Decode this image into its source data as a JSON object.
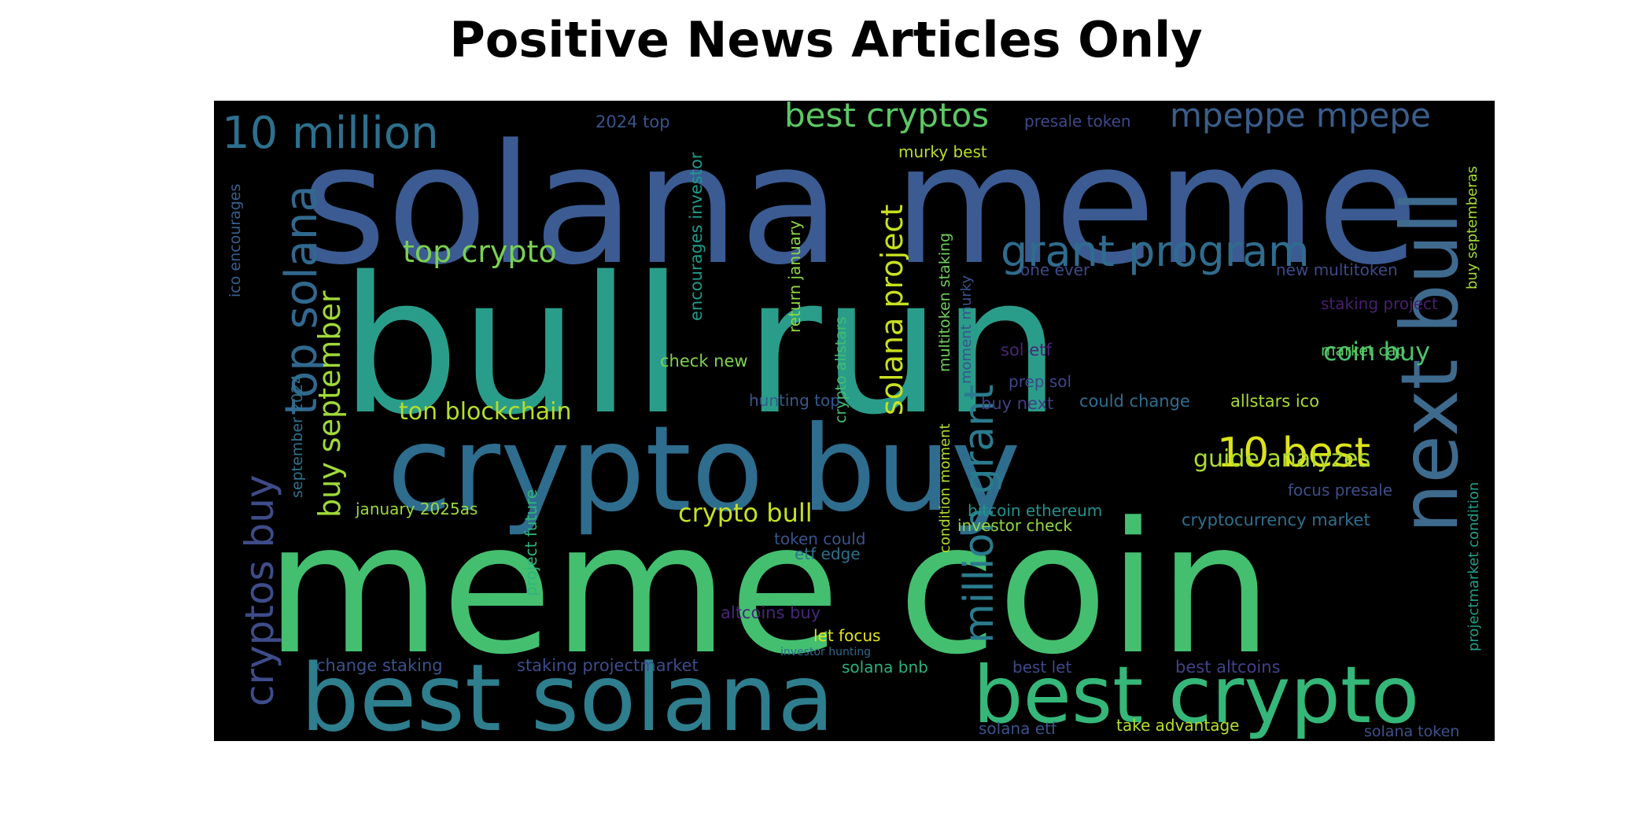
{
  "title": "Positive News Articles Only",
  "background": "#000000",
  "words": [
    {
      "text": "solana meme",
      "color": "#3b5b92"
    },
    {
      "text": "bull run",
      "color": "#2a9d8a"
    },
    {
      "text": "meme coin",
      "color": "#44bf70"
    },
    {
      "text": "crypto buy",
      "color": "#2e6d8e"
    },
    {
      "text": "best solana",
      "color": "#2e7e8e"
    },
    {
      "text": "best crypto",
      "color": "#35b779"
    },
    {
      "text": "next bull",
      "color": "#3e6a8e"
    },
    {
      "text": "10 million",
      "color": "#2d708e"
    },
    {
      "text": "top solana",
      "color": "#31688e"
    },
    {
      "text": "cryptos buy",
      "color": "#3e4c8a"
    },
    {
      "text": "grant program",
      "color": "#2f6c8e"
    },
    {
      "text": "best cryptos",
      "color": "#5cc863"
    },
    {
      "text": "mpeppe mpepe",
      "color": "#3a5e8c"
    },
    {
      "text": "million grant",
      "color": "#2a7b8e"
    },
    {
      "text": "solana project",
      "color": "#c8e020"
    },
    {
      "text": "top crypto",
      "color": "#7ad151"
    },
    {
      "text": "buy september",
      "color": "#a0da39"
    },
    {
      "text": "10 best",
      "color": "#dde318"
    },
    {
      "text": "ton blockchain",
      "color": "#b5de2b"
    },
    {
      "text": "crypto bull",
      "color": "#c6e021"
    },
    {
      "text": "guide analyzes",
      "color": "#addc30"
    },
    {
      "text": "coin buy",
      "color": "#4ac16d"
    },
    {
      "text": "2024 top",
      "color": "#3b528b"
    },
    {
      "text": "presale token",
      "color": "#3e4989"
    },
    {
      "text": "murky best",
      "color": "#b8de29"
    },
    {
      "text": "encourages investor",
      "color": "#1f9a8a"
    },
    {
      "text": "ico encourages",
      "color": "#355f8d"
    },
    {
      "text": "september 2024",
      "color": "#2c728e"
    },
    {
      "text": "january 2025as",
      "color": "#9bd93c"
    },
    {
      "text": "project future",
      "color": "#2fb47c"
    },
    {
      "text": "return january",
      "color": "#90d743"
    },
    {
      "text": "crypto allstars",
      "color": "#42be71"
    },
    {
      "text": "multitoken staking",
      "color": "#6ece58"
    },
    {
      "text": "moment murky",
      "color": "#3b528b"
    },
    {
      "text": "condition moment",
      "color": "#b2dd2d"
    },
    {
      "text": "check new",
      "color": "#7fd34e"
    },
    {
      "text": "one ever",
      "color": "#3e4989"
    },
    {
      "text": "new multitoken",
      "color": "#3e4a89"
    },
    {
      "text": "buy septemberas",
      "color": "#a2da37"
    },
    {
      "text": "staking project",
      "color": "#481f70"
    },
    {
      "text": "sol etf",
      "color": "#482576"
    },
    {
      "text": "market cap",
      "color": "#5ec962"
    },
    {
      "text": "prep sol",
      "color": "#3f4788"
    },
    {
      "text": "hunting top",
      "color": "#38588c"
    },
    {
      "text": "buy next",
      "color": "#433e85"
    },
    {
      "text": "could change",
      "color": "#2e6e8e"
    },
    {
      "text": "allstars ico",
      "color": "#a8db34"
    },
    {
      "text": "focus presale",
      "color": "#3d4e8a"
    },
    {
      "text": "bitcoin ethereum",
      "color": "#20928c"
    },
    {
      "text": "investor check",
      "color": "#93d741"
    },
    {
      "text": "cryptocurrency market",
      "color": "#2d708e"
    },
    {
      "text": "token could",
      "color": "#3a538b"
    },
    {
      "text": "etf edge",
      "color": "#2c718e"
    },
    {
      "text": "projectmarket condition",
      "color": "#1fa088"
    },
    {
      "text": "altcoins buy",
      "color": "#482878"
    },
    {
      "text": "let focus",
      "color": "#e5e419"
    },
    {
      "text": "investor hunting",
      "color": "#2c6a8e"
    },
    {
      "text": "change staking",
      "color": "#3b538b"
    },
    {
      "text": "staking projectmarket",
      "color": "#3e4c8a"
    },
    {
      "text": "solana bnb",
      "color": "#2ab07f"
    },
    {
      "text": "best let",
      "color": "#3f4889"
    },
    {
      "text": "best altcoins",
      "color": "#414287"
    },
    {
      "text": "solana etf",
      "color": "#3b528b"
    },
    {
      "text": "take advantage",
      "color": "#b5de2b"
    },
    {
      "text": "solana token",
      "color": "#3b528b"
    }
  ]
}
